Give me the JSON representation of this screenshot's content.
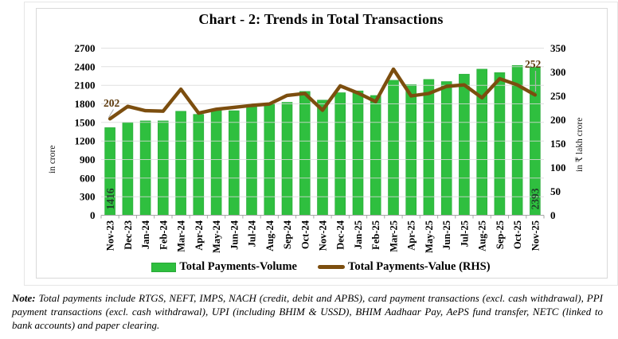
{
  "title": "Chart - 2: Trends in Total Transactions",
  "colors": {
    "bar": "#2FBF3F",
    "bar_edge": "#29A838",
    "line": "#7C4E0F",
    "bar_label": "#20422A",
    "line_label": "#5C390B",
    "grid": "#D9D9D9",
    "axis": "#A6A6A6",
    "leader": "#B0B0B0"
  },
  "chart_data": {
    "type": "bar",
    "subtype": "bar+line combo, dual axis",
    "title": "Chart - 2: Trends in Total Transactions",
    "grid": true,
    "legend_position": "bottom",
    "categories": [
      "Nov-23",
      "Dec-23",
      "Jan-24",
      "Feb-24",
      "Mar-24",
      "Apr-24",
      "May-24",
      "Jun-24",
      "Jul-24",
      "Aug-24",
      "Sep-24",
      "Oct-24",
      "Nov-24",
      "Dec-24",
      "Jan-25",
      "Feb-25",
      "Mar-25",
      "Apr-25",
      "May-25",
      "Jun-25",
      "Jul-25",
      "Aug-25",
      "Sep-25",
      "Oct-25",
      "Nov-25"
    ],
    "series": [
      {
        "name": "Total Payments-Volume",
        "type": "bar",
        "axis": "left",
        "values": [
          1416,
          1500,
          1525,
          1525,
          1680,
          1630,
          1700,
          1690,
          1760,
          1800,
          1825,
          2000,
          1860,
          1980,
          2010,
          1935,
          2180,
          2110,
          2195,
          2160,
          2280,
          2360,
          2305,
          2420,
          2393
        ]
      },
      {
        "name": "Total Payments-Value (RHS)",
        "type": "line",
        "axis": "right",
        "values": [
          202,
          228,
          219,
          218,
          264,
          214,
          222,
          226,
          230,
          233,
          251,
          255,
          220,
          271,
          256,
          238,
          306,
          250,
          255,
          270,
          273,
          246,
          286,
          273,
          252
        ]
      }
    ],
    "left_axis": {
      "title": "in crore",
      "min": 0,
      "max": 2700,
      "ticks": [
        0,
        300,
        600,
        900,
        1200,
        1500,
        1800,
        2100,
        2400,
        2700
      ]
    },
    "right_axis": {
      "title": "in ₹ lakh crore",
      "min": 0,
      "max": 350,
      "ticks": [
        0,
        50,
        100,
        150,
        200,
        250,
        300,
        350
      ]
    },
    "point_labels": [
      {
        "series": 0,
        "index": 0,
        "text": "1416"
      },
      {
        "series": 0,
        "index": 24,
        "text": "2393"
      },
      {
        "series": 1,
        "index": 0,
        "text": "202"
      },
      {
        "series": 1,
        "index": 24,
        "text": "252"
      }
    ]
  },
  "legend": {
    "volume_label": "Total Payments-Volume",
    "value_label": "Total Payments-Value (RHS)"
  },
  "note": {
    "label": "Note:",
    "text": " Total payments include RTGS, NEFT, IMPS, NACH (credit, debit and APBS), card payment transactions (excl. cash withdrawal), PPI payment transactions (excl. cash withdrawal), UPI (including BHIM & USSD), BHIM Aadhaar Pay, AePS fund transfer, NETC (linked to bank accounts) and paper clearing."
  }
}
